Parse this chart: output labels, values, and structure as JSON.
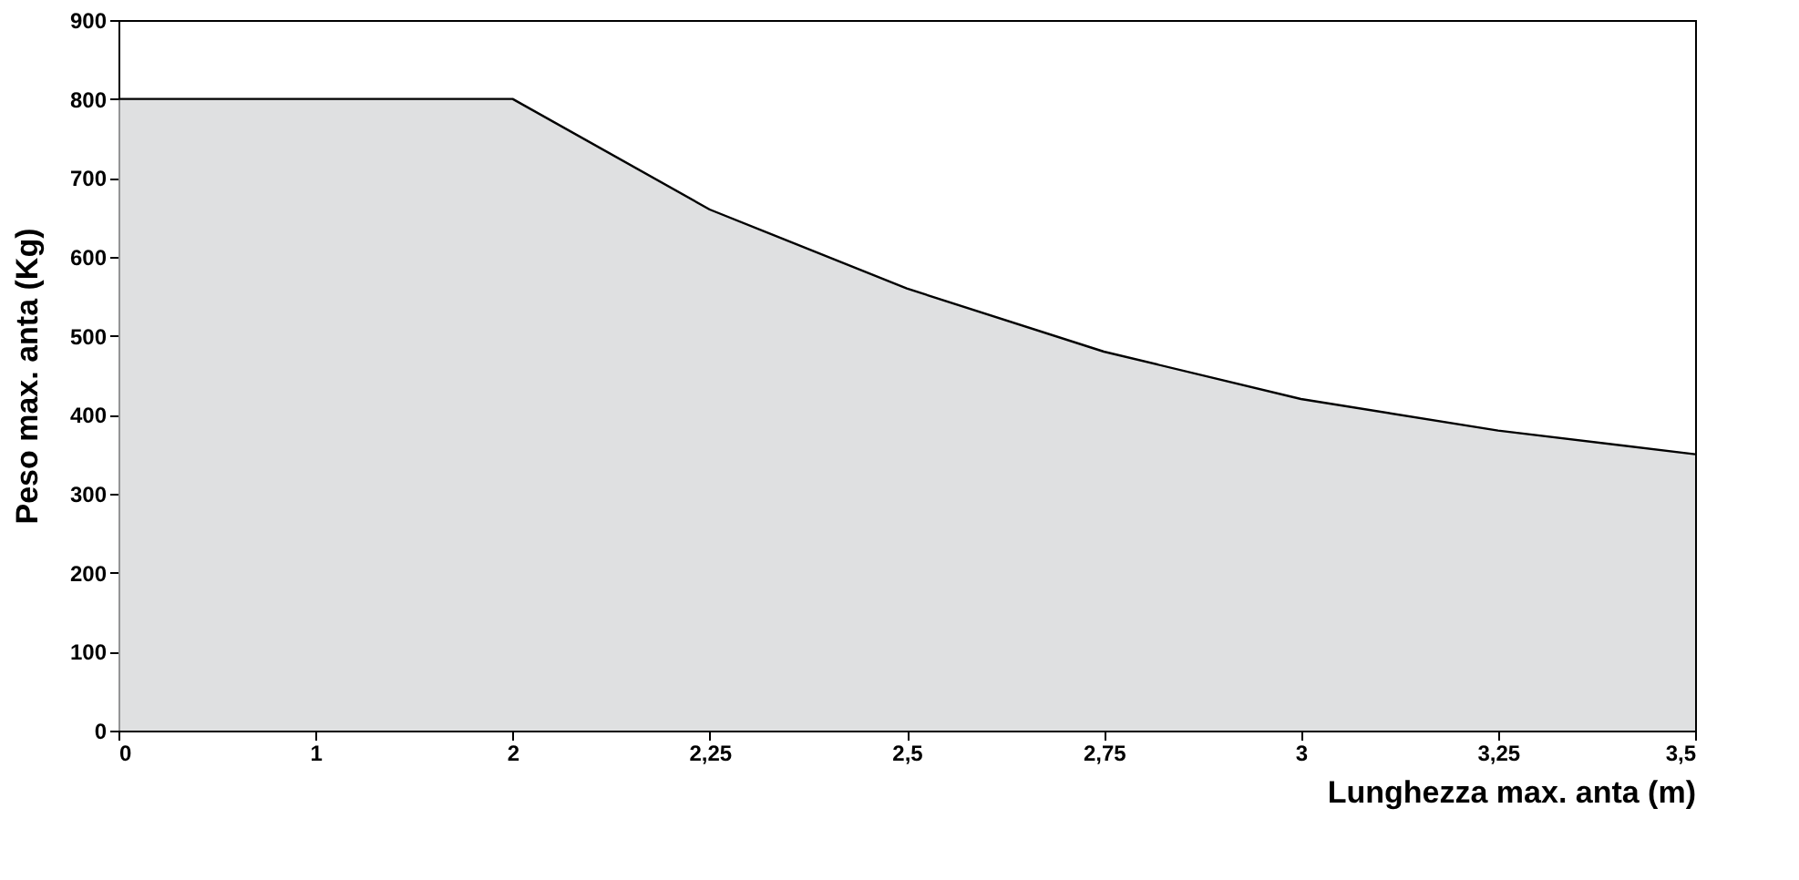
{
  "chart_data": {
    "type": "area",
    "xlabel": "Lunghezza max. anta (m)",
    "ylabel": "Peso max. anta (Kg)",
    "categories": [
      "0",
      "1",
      "2",
      "2,25",
      "2,5",
      "2,75",
      "3",
      "3,25",
      "3,5"
    ],
    "series": [
      {
        "color": "#d1d3d4",
        "values": [
          800,
          800,
          800,
          660,
          560,
          480,
          420,
          380,
          350
        ]
      }
    ],
    "ylim": [
      0,
      900
    ],
    "yticks": [
      0,
      100,
      200,
      300,
      400,
      500,
      600,
      700,
      800,
      900
    ],
    "grid": false
  }
}
